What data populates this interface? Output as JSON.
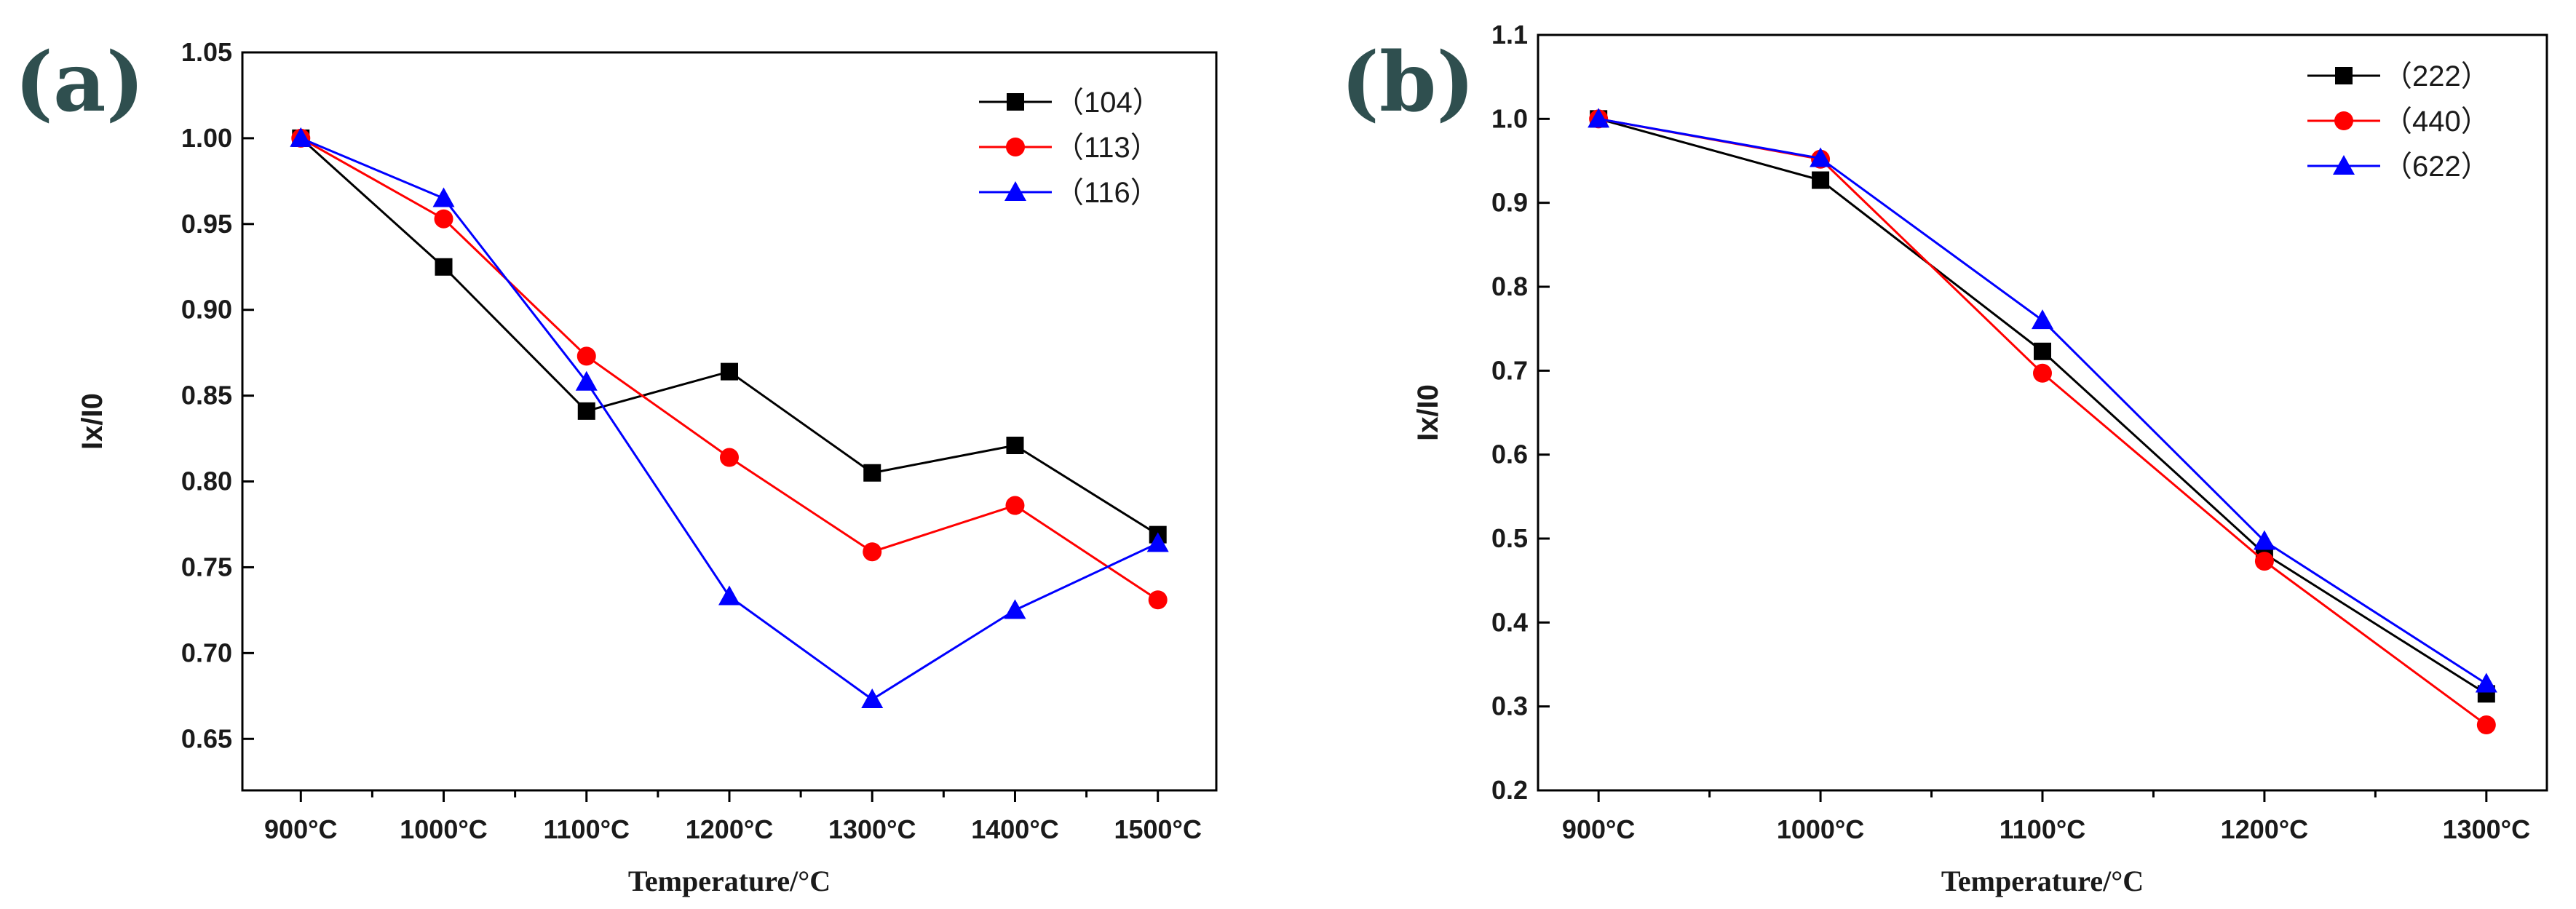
{
  "chart_data": [
    {
      "type": "line",
      "panel_label": "(a)",
      "xlabel": "Temperature/°C",
      "ylabel": "Ix/I0",
      "categories": [
        "900°C",
        "1000°C",
        "1100°C",
        "1200°C",
        "1300°C",
        "1400°C",
        "1500°C"
      ],
      "ylim": [
        0.62,
        1.05
      ],
      "yticks": [
        0.65,
        0.7,
        0.75,
        0.8,
        0.85,
        0.9,
        0.95,
        1.0,
        1.05
      ],
      "ytick_labels": [
        "0.65",
        "0.70",
        "0.75",
        "0.80",
        "0.85",
        "0.90",
        "0.95",
        "1.00",
        "1.05"
      ],
      "grid": false,
      "legend_position": "top-right",
      "series": [
        {
          "name": "（104）",
          "marker": "square",
          "color": "#000000",
          "values": [
            1.0,
            0.925,
            0.841,
            0.864,
            0.805,
            0.821,
            0.769
          ]
        },
        {
          "name": "（113）",
          "marker": "circle",
          "color": "#ff0000",
          "values": [
            1.0,
            0.953,
            0.873,
            0.814,
            0.759,
            0.786,
            0.731
          ]
        },
        {
          "name": "（116）",
          "marker": "triangle",
          "color": "#0000ff",
          "values": [
            1.0,
            0.965,
            0.858,
            0.733,
            0.673,
            0.725,
            0.764
          ]
        }
      ]
    },
    {
      "type": "line",
      "panel_label": "(b)",
      "xlabel": "Temperature/°C",
      "ylabel": "Ix/I0",
      "categories": [
        "900°C",
        "1000°C",
        "1100°C",
        "1200°C",
        "1300°C"
      ],
      "ylim": [
        0.2,
        1.1
      ],
      "yticks": [
        0.2,
        0.3,
        0.4,
        0.5,
        0.6,
        0.7,
        0.8,
        0.9,
        1.0,
        1.1
      ],
      "ytick_labels": [
        "0.2",
        "0.3",
        "0.4",
        "0.5",
        "0.6",
        "0.7",
        "0.8",
        "0.9",
        "1.0",
        "1.1"
      ],
      "grid": false,
      "legend_position": "top-right",
      "series": [
        {
          "name": "（222）",
          "marker": "square",
          "color": "#000000",
          "values": [
            1.0,
            0.927,
            0.723,
            0.482,
            0.315
          ]
        },
        {
          "name": "（440）",
          "marker": "circle",
          "color": "#ff0000",
          "values": [
            1.0,
            0.952,
            0.697,
            0.473,
            0.278
          ]
        },
        {
          "name": "（622）",
          "marker": "triangle",
          "color": "#0000ff",
          "values": [
            1.0,
            0.953,
            0.76,
            0.497,
            0.327
          ]
        }
      ]
    }
  ]
}
